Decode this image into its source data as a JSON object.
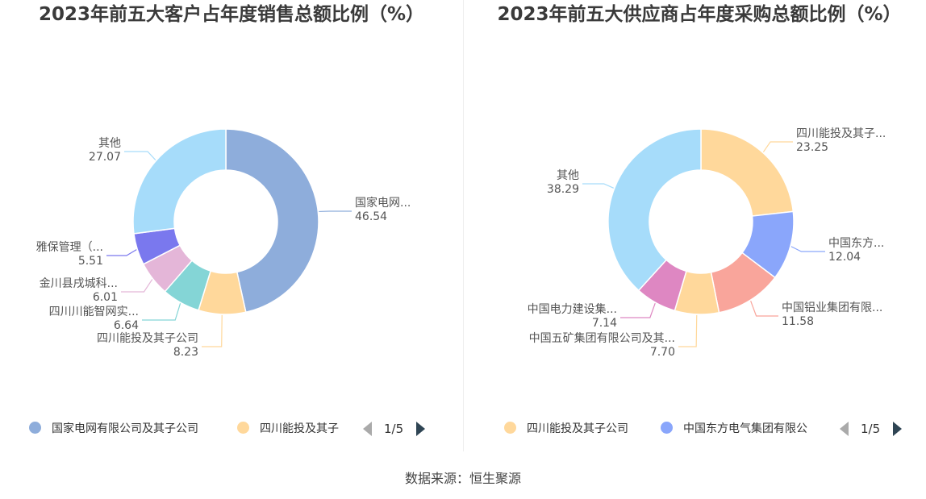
{
  "source": "数据来源：恒生聚源",
  "chart_data": [
    {
      "type": "pie",
      "title": "2023年前五大客户占年度销售总额比例（%）",
      "slices": [
        {
          "label": "国家电网...",
          "value": 46.54,
          "value_text": "46.54",
          "color": "#8eaddb"
        },
        {
          "label": "四川能投及其子公司",
          "value": 8.23,
          "value_text": "8.23",
          "color": "#ffd89b"
        },
        {
          "label": "四川川能智网实...",
          "value": 6.64,
          "value_text": "6.64",
          "color": "#84d5d6"
        },
        {
          "label": "金川县戌城科...",
          "value": 6.01,
          "value_text": "6.01",
          "color": "#e4b6d8"
        },
        {
          "label": "雅保管理（...",
          "value": 5.51,
          "value_text": "5.51",
          "color": "#7a78ee"
        },
        {
          "label": "其他",
          "value": 27.07,
          "value_text": "27.07",
          "color": "#a6dcfa"
        }
      ],
      "legend": {
        "items": [
          {
            "label": "国家电网有限公司及其子公司",
            "color": "#8eaddb"
          },
          {
            "label": "四川能投及其子",
            "color": "#ffd89b"
          }
        ],
        "page": "1/5"
      }
    },
    {
      "type": "pie",
      "title": "2023年前五大供应商占年度采购总额比例（%）",
      "slices": [
        {
          "label": "四川能投及其子...",
          "value": 23.25,
          "value_text": "23.25",
          "color": "#ffd89b"
        },
        {
          "label": "中国东方...",
          "value": 12.04,
          "value_text": "12.04",
          "color": "#8aa6fb"
        },
        {
          "label": "中国铝业集团有限...",
          "value": 11.58,
          "value_text": "11.58",
          "color": "#f9a59b"
        },
        {
          "label": "中国五矿集团有限公司及其...",
          "value": 7.7,
          "value_text": "7.70",
          "color": "#ffd89b"
        },
        {
          "label": "中国电力建设集...",
          "value": 7.14,
          "value_text": "7.14",
          "color": "#de87c2"
        },
        {
          "label": "其他",
          "value": 38.29,
          "value_text": "38.29",
          "color": "#a6dcfa"
        }
      ],
      "legend": {
        "items": [
          {
            "label": "四川能投及其子公司",
            "color": "#ffd89b"
          },
          {
            "label": "中国东方电气集团有限公",
            "color": "#8aa6fb"
          }
        ],
        "page": "1/5"
      }
    }
  ]
}
